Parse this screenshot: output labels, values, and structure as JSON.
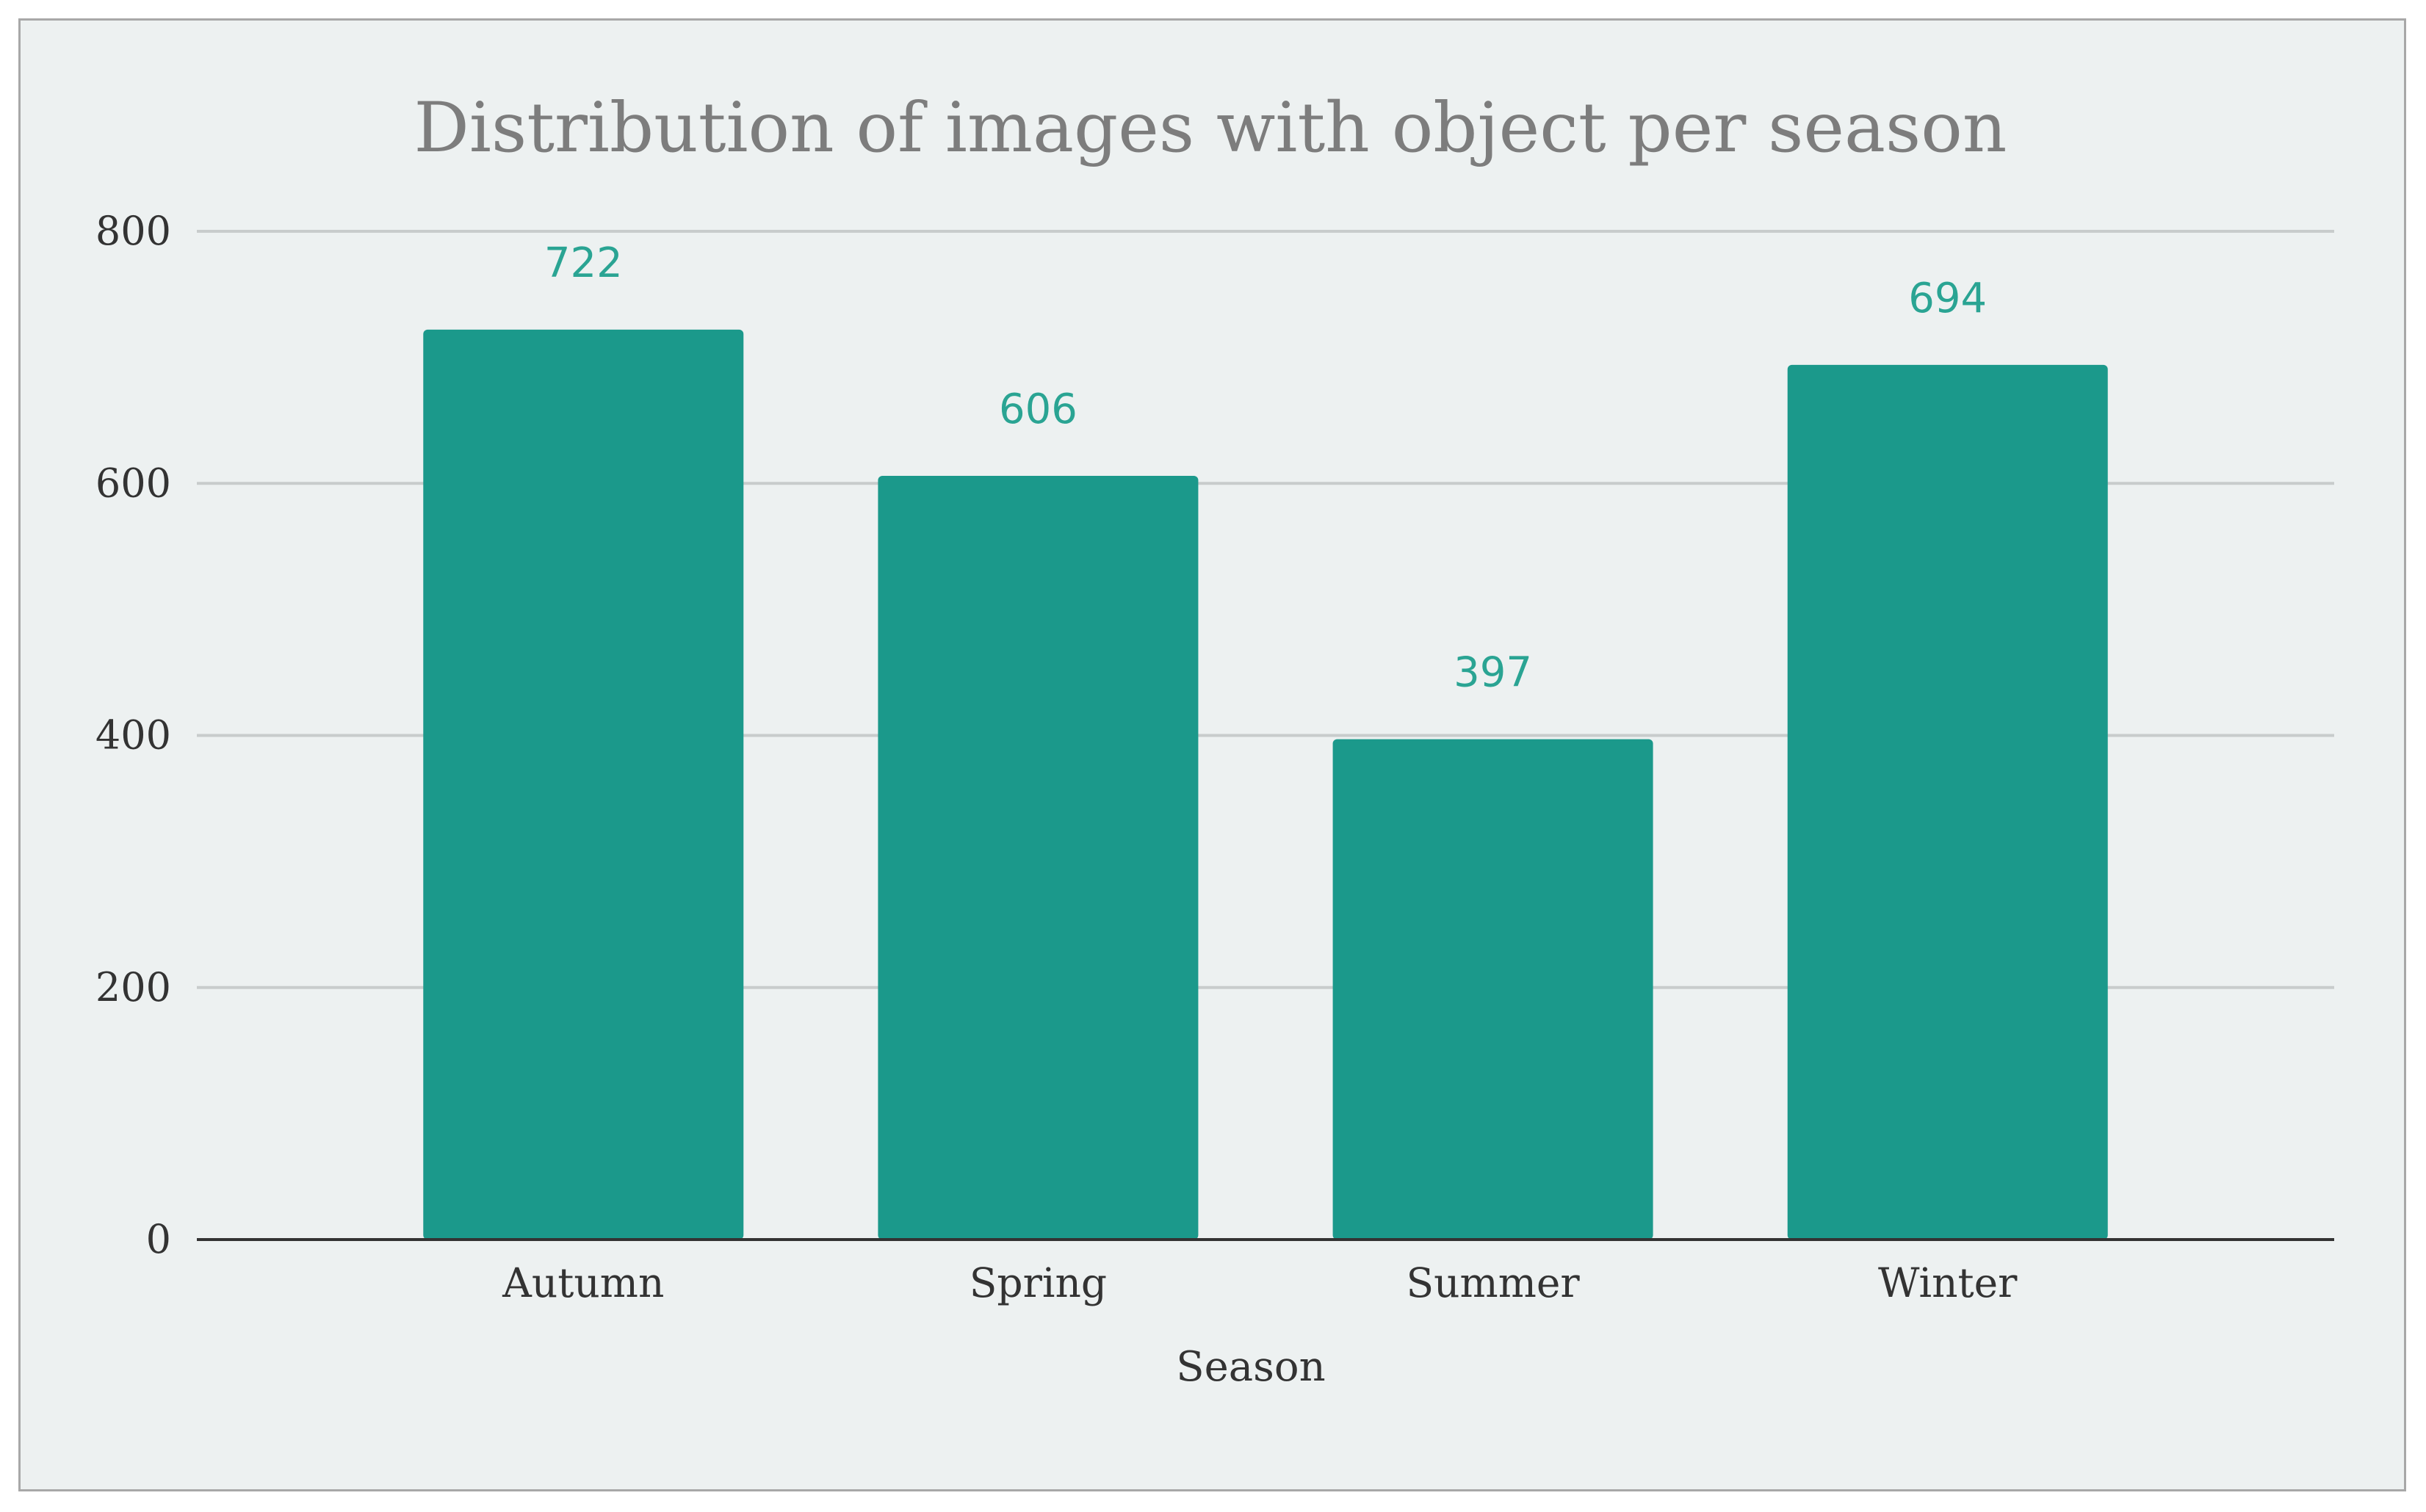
{
  "colors": {
    "bar": "#1b998b",
    "data_label": "#2aa493",
    "grid": "#c8cccc",
    "baseline": "#333333",
    "background": "#edf1f1"
  },
  "chart_data": {
    "type": "bar",
    "title": "Distribution of images with object per season",
    "xlabel": "Season",
    "ylabel": "",
    "categories": [
      "Autumn",
      "Spring",
      "Summer",
      "Winter"
    ],
    "values": [
      722,
      606,
      397,
      694
    ],
    "data_labels": [
      "722",
      "606",
      "397",
      "694"
    ],
    "ylim": [
      0,
      800
    ],
    "yticks": [
      0,
      200,
      400,
      600,
      800
    ],
    "ytick_labels": [
      "0",
      "200",
      "400",
      "600",
      "800"
    ],
    "grid": true,
    "legend": "none"
  }
}
